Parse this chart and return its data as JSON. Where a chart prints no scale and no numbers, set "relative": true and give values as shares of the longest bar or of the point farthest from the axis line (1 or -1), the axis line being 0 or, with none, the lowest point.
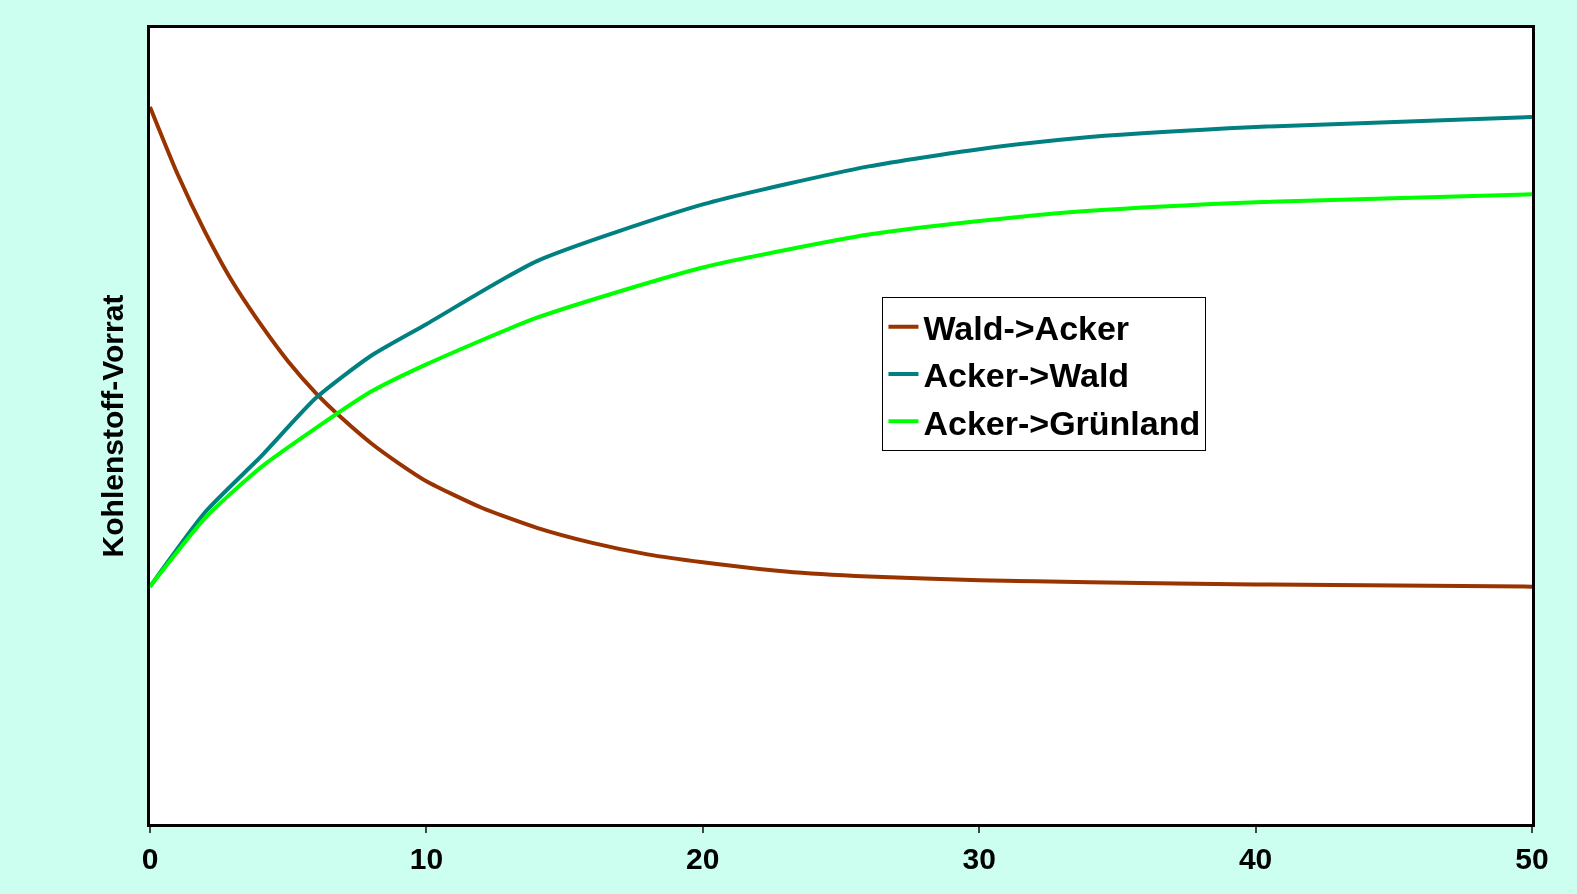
{
  "chart_data": {
    "type": "line",
    "ylabel": "Kohlenstoff-Vorrat",
    "relative": true,
    "xlim": [
      0,
      50
    ],
    "xticks": [
      0,
      10,
      20,
      30,
      40,
      50
    ],
    "legend": "right",
    "marker": "none",
    "line_style": "solid",
    "series": [
      {
        "name": "Wald->Acker",
        "color": "#993300",
        "x": [
          0,
          1,
          2,
          3,
          4,
          5,
          6,
          7,
          8,
          9,
          10,
          12,
          14,
          16,
          18,
          20,
          23,
          26,
          30,
          34,
          40,
          50
        ],
        "values": [
          1.0,
          0.906,
          0.825,
          0.755,
          0.697,
          0.645,
          0.601,
          0.564,
          0.531,
          0.503,
          0.478,
          0.441,
          0.413,
          0.392,
          0.376,
          0.365,
          0.352,
          0.345,
          0.34,
          0.337,
          0.334,
          0.331
        ]
      },
      {
        "name": "Acker->Wald",
        "color": "#008080",
        "x": [
          0,
          2,
          4,
          6,
          8,
          10,
          14,
          20,
          26,
          30,
          34,
          40,
          50
        ],
        "values": [
          0.331,
          0.435,
          0.512,
          0.594,
          0.653,
          0.697,
          0.785,
          0.864,
          0.917,
          0.941,
          0.958,
          0.972,
          0.986
        ]
      },
      {
        "name": "Acker->Grünland",
        "color": "#00ff00",
        "x": [
          0,
          2,
          4,
          6,
          8,
          10,
          14,
          20,
          26,
          30,
          34,
          40,
          50
        ],
        "values": [
          0.331,
          0.427,
          0.497,
          0.552,
          0.603,
          0.641,
          0.706,
          0.776,
          0.822,
          0.841,
          0.855,
          0.867,
          0.878
        ]
      }
    ]
  }
}
